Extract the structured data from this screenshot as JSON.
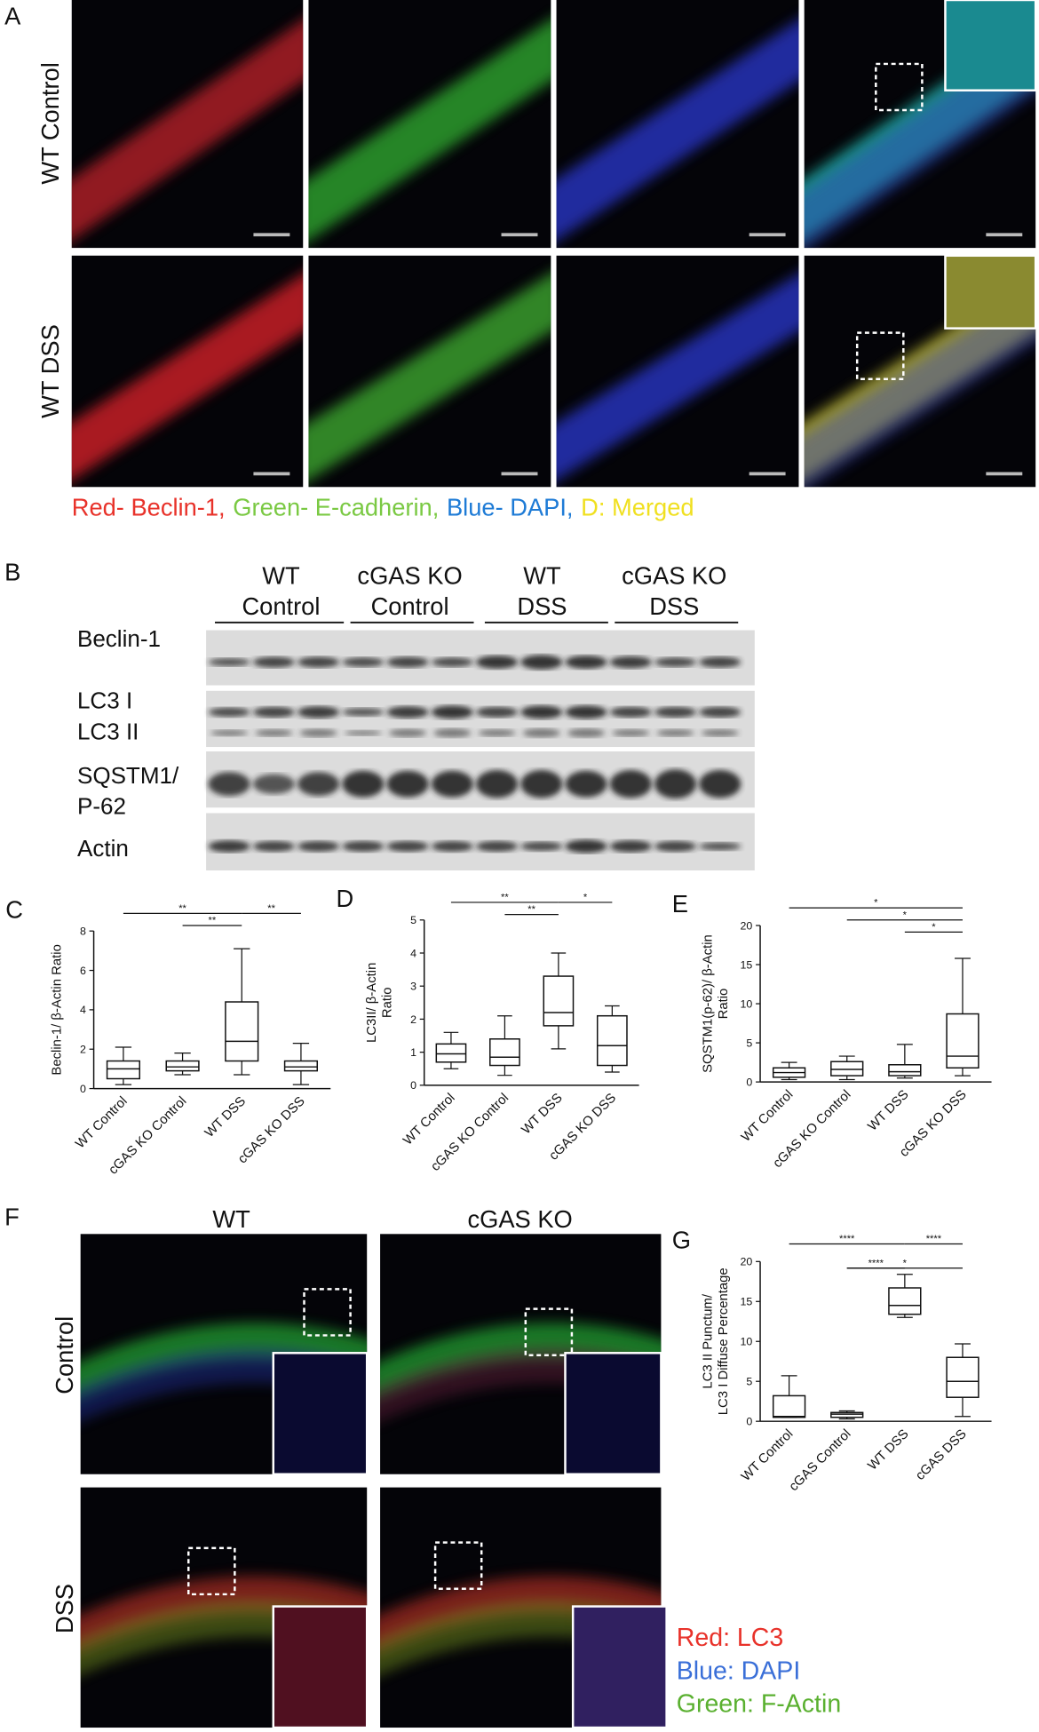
{
  "panels": {
    "A": {
      "letter": "A",
      "rows": [
        "WT Control",
        "WT DSS"
      ],
      "legend": [
        "Red- Beclin-1,",
        "Green- E-cadherin,",
        "Blue- DAPI,",
        "D: Merged"
      ]
    },
    "B": {
      "letter": "B",
      "groups": [
        [
          "WT",
          "Control"
        ],
        [
          "cGAS KO",
          "Control"
        ],
        [
          "WT",
          "DSS"
        ],
        [
          "cGAS KO",
          "DSS"
        ]
      ],
      "rows": [
        "Beclin-1",
        "LC3 I",
        "LC3 II",
        "SQSTM1/",
        "P-62",
        "Actin"
      ]
    },
    "F": {
      "letter": "F",
      "columns": [
        "WT",
        "cGAS KO"
      ],
      "rows": [
        "Control",
        "DSS"
      ],
      "legend": [
        "Red: LC3",
        "Blue: DAPI",
        "Green: F-Actin"
      ]
    }
  },
  "chart_data": [
    {
      "type": "box",
      "label": "C",
      "ylabel": [
        "Beclin-1/ β-Actin Ratio"
      ],
      "categories": [
        "WT Control",
        "cGAS KO Control",
        "WT DSS",
        "cGAS KO DSS"
      ],
      "ylim": [
        0,
        8
      ],
      "yticks": [
        0,
        2,
        4,
        6,
        8
      ],
      "boxes": [
        {
          "min": 0.2,
          "q1": 0.5,
          "median": 1.0,
          "q3": 1.4,
          "max": 2.1
        },
        {
          "min": 0.7,
          "q1": 0.9,
          "median": 1.1,
          "q3": 1.4,
          "max": 1.8
        },
        {
          "min": 0.7,
          "q1": 1.4,
          "median": 2.4,
          "q3": 4.4,
          "max": 7.1
        },
        {
          "min": 0.2,
          "q1": 0.9,
          "median": 1.1,
          "q3": 1.4,
          "max": 2.3
        }
      ],
      "significance": [
        {
          "from": "WT Control",
          "to": "WT DSS",
          "label": "**"
        },
        {
          "from": "WT DSS",
          "to": "cGAS KO DSS",
          "label": "**"
        },
        {
          "from": "cGAS KO Control",
          "to": "WT DSS",
          "label": "**"
        }
      ]
    },
    {
      "type": "box",
      "label": "D",
      "ylabel": [
        "LC3II/ β-Actin",
        "Ratio"
      ],
      "categories": [
        "WT Control",
        "cGAS KO Control",
        "WT DSS",
        "cGAS KO DSS"
      ],
      "ylim": [
        0,
        5
      ],
      "yticks": [
        0,
        1,
        2,
        3,
        4,
        5
      ],
      "boxes": [
        {
          "min": 0.5,
          "q1": 0.7,
          "median": 0.95,
          "q3": 1.25,
          "max": 1.6
        },
        {
          "min": 0.3,
          "q1": 0.6,
          "median": 0.85,
          "q3": 1.4,
          "max": 2.1
        },
        {
          "min": 1.1,
          "q1": 1.8,
          "median": 2.2,
          "q3": 3.3,
          "max": 4.0
        },
        {
          "min": 0.4,
          "q1": 0.6,
          "median": 1.2,
          "q3": 2.1,
          "max": 2.4
        }
      ],
      "significance": [
        {
          "from": "WT Control",
          "to": "WT DSS",
          "label": "**"
        },
        {
          "from": "WT DSS",
          "to": "cGAS KO DSS",
          "label": "*"
        },
        {
          "from": "cGAS KO Control",
          "to": "WT DSS",
          "label": "**"
        }
      ]
    },
    {
      "type": "box",
      "label": "E",
      "ylabel": [
        "SQSTM1(p-62)/ β-Actin",
        "Ratio"
      ],
      "categories": [
        "WT Control",
        "cGAS KO Control",
        "WT DSS",
        "cGAS KO DSS"
      ],
      "ylim": [
        0,
        20
      ],
      "yticks": [
        0,
        5,
        10,
        15,
        20
      ],
      "boxes": [
        {
          "min": 0.3,
          "q1": 0.6,
          "median": 1.2,
          "q3": 1.8,
          "max": 2.5
        },
        {
          "min": 0.3,
          "q1": 0.8,
          "median": 1.6,
          "q3": 2.6,
          "max": 3.3
        },
        {
          "min": 0.5,
          "q1": 0.8,
          "median": 1.3,
          "q3": 2.2,
          "max": 4.8
        },
        {
          "min": 0.8,
          "q1": 1.8,
          "median": 3.3,
          "q3": 8.7,
          "max": 15.8
        }
      ],
      "significance": [
        {
          "from": "WT Control",
          "to": "cGAS KO DSS",
          "label": "*"
        },
        {
          "from": "cGAS KO Control",
          "to": "cGAS KO DSS",
          "label": "*"
        },
        {
          "from": "WT DSS",
          "to": "cGAS KO DSS",
          "label": "*"
        }
      ]
    },
    {
      "type": "box",
      "label": "G",
      "ylabel": [
        "LC3 II Punctum/",
        "LC3 I Diffuse Percentage"
      ],
      "categories": [
        "WT Control",
        "cGAS Control",
        "WT DSS",
        "cGAS DSS"
      ],
      "ylim": [
        0,
        20
      ],
      "yticks": [
        0,
        5,
        10,
        15,
        20
      ],
      "boxes": [
        {
          "min": 0.5,
          "q1": 0.5,
          "median": 0.6,
          "q3": 3.2,
          "max": 5.7
        },
        {
          "min": 0.3,
          "q1": 0.5,
          "median": 0.9,
          "q3": 1.1,
          "max": 1.3
        },
        {
          "min": 13.0,
          "q1": 13.4,
          "median": 14.5,
          "q3": 16.7,
          "max": 18.4
        },
        {
          "min": 0.6,
          "q1": 3.0,
          "median": 5.0,
          "q3": 8.0,
          "max": 9.7
        }
      ],
      "significance": [
        {
          "from": "WT Control",
          "to": "WT DSS",
          "label": "****"
        },
        {
          "from": "WT DSS",
          "to": "cGAS DSS",
          "label": "****"
        },
        {
          "from": "cGAS Control",
          "to": "cGAS DSS",
          "label": "*"
        },
        {
          "from": "cGAS Control",
          "to": "WT DSS",
          "label": "****"
        }
      ]
    }
  ]
}
